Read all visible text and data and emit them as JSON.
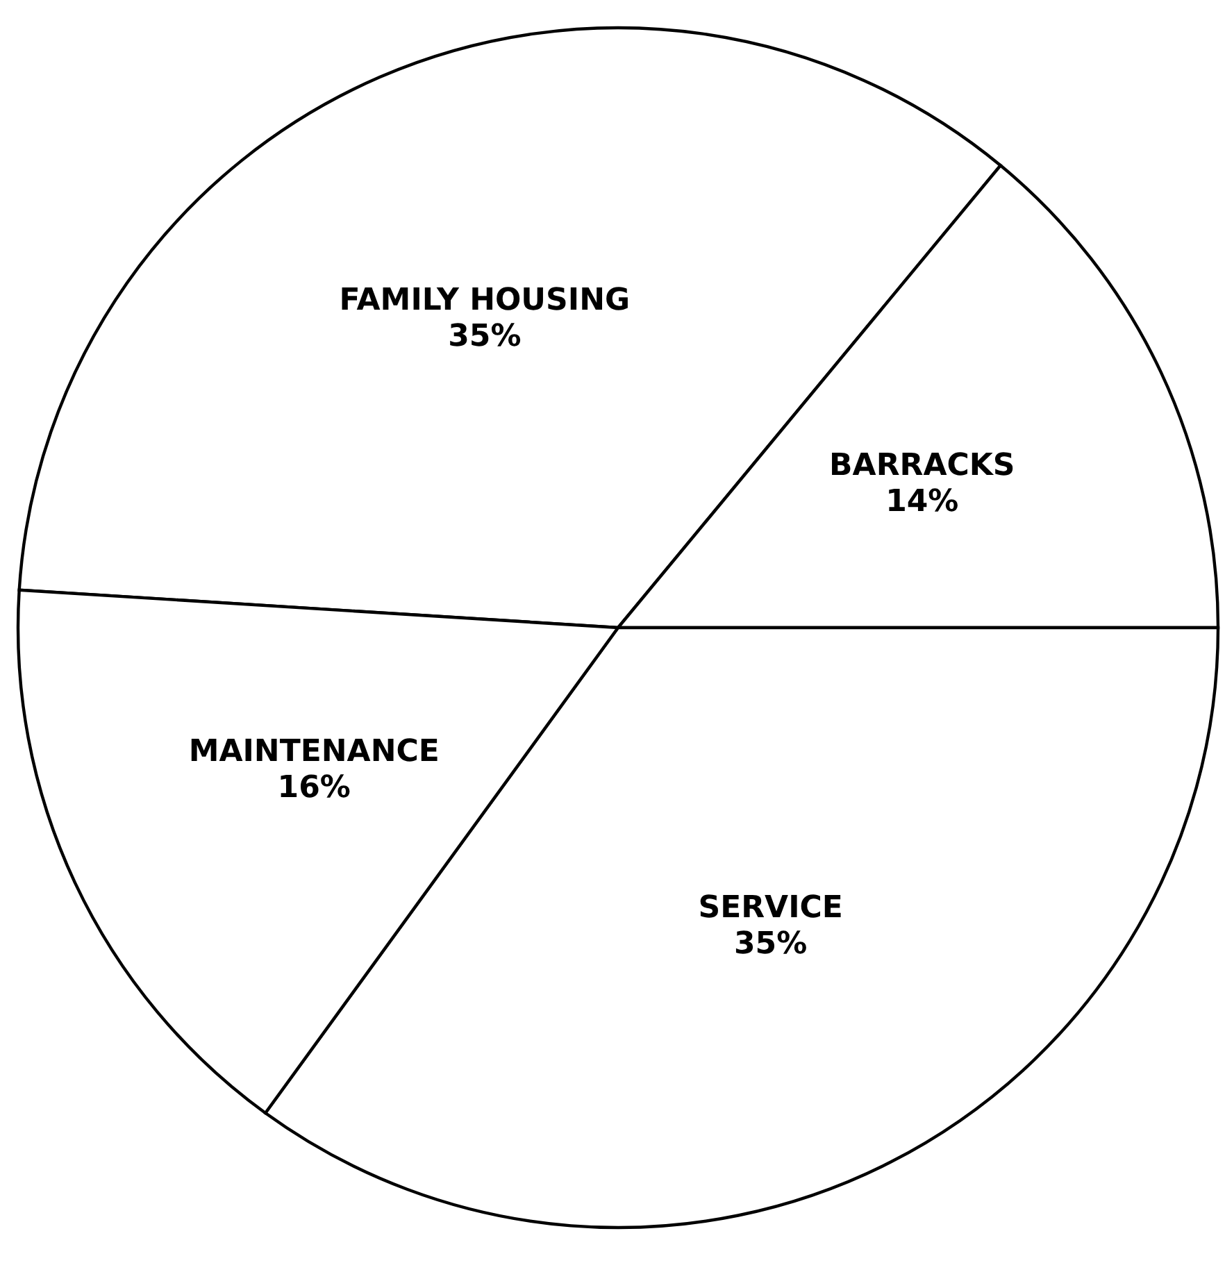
{
  "chart_data": {
    "type": "pie",
    "categories": [
      "FAMILY HOUSING",
      "BARRACKS",
      "SERVICE",
      "MAINTENANCE"
    ],
    "values": [
      35,
      14,
      35,
      16
    ],
    "value_labels": [
      "35%",
      "14%",
      "35%",
      "16%"
    ],
    "colors": [
      "#ffffff",
      "#ffffff",
      "#ffffff",
      "#ffffff"
    ]
  }
}
